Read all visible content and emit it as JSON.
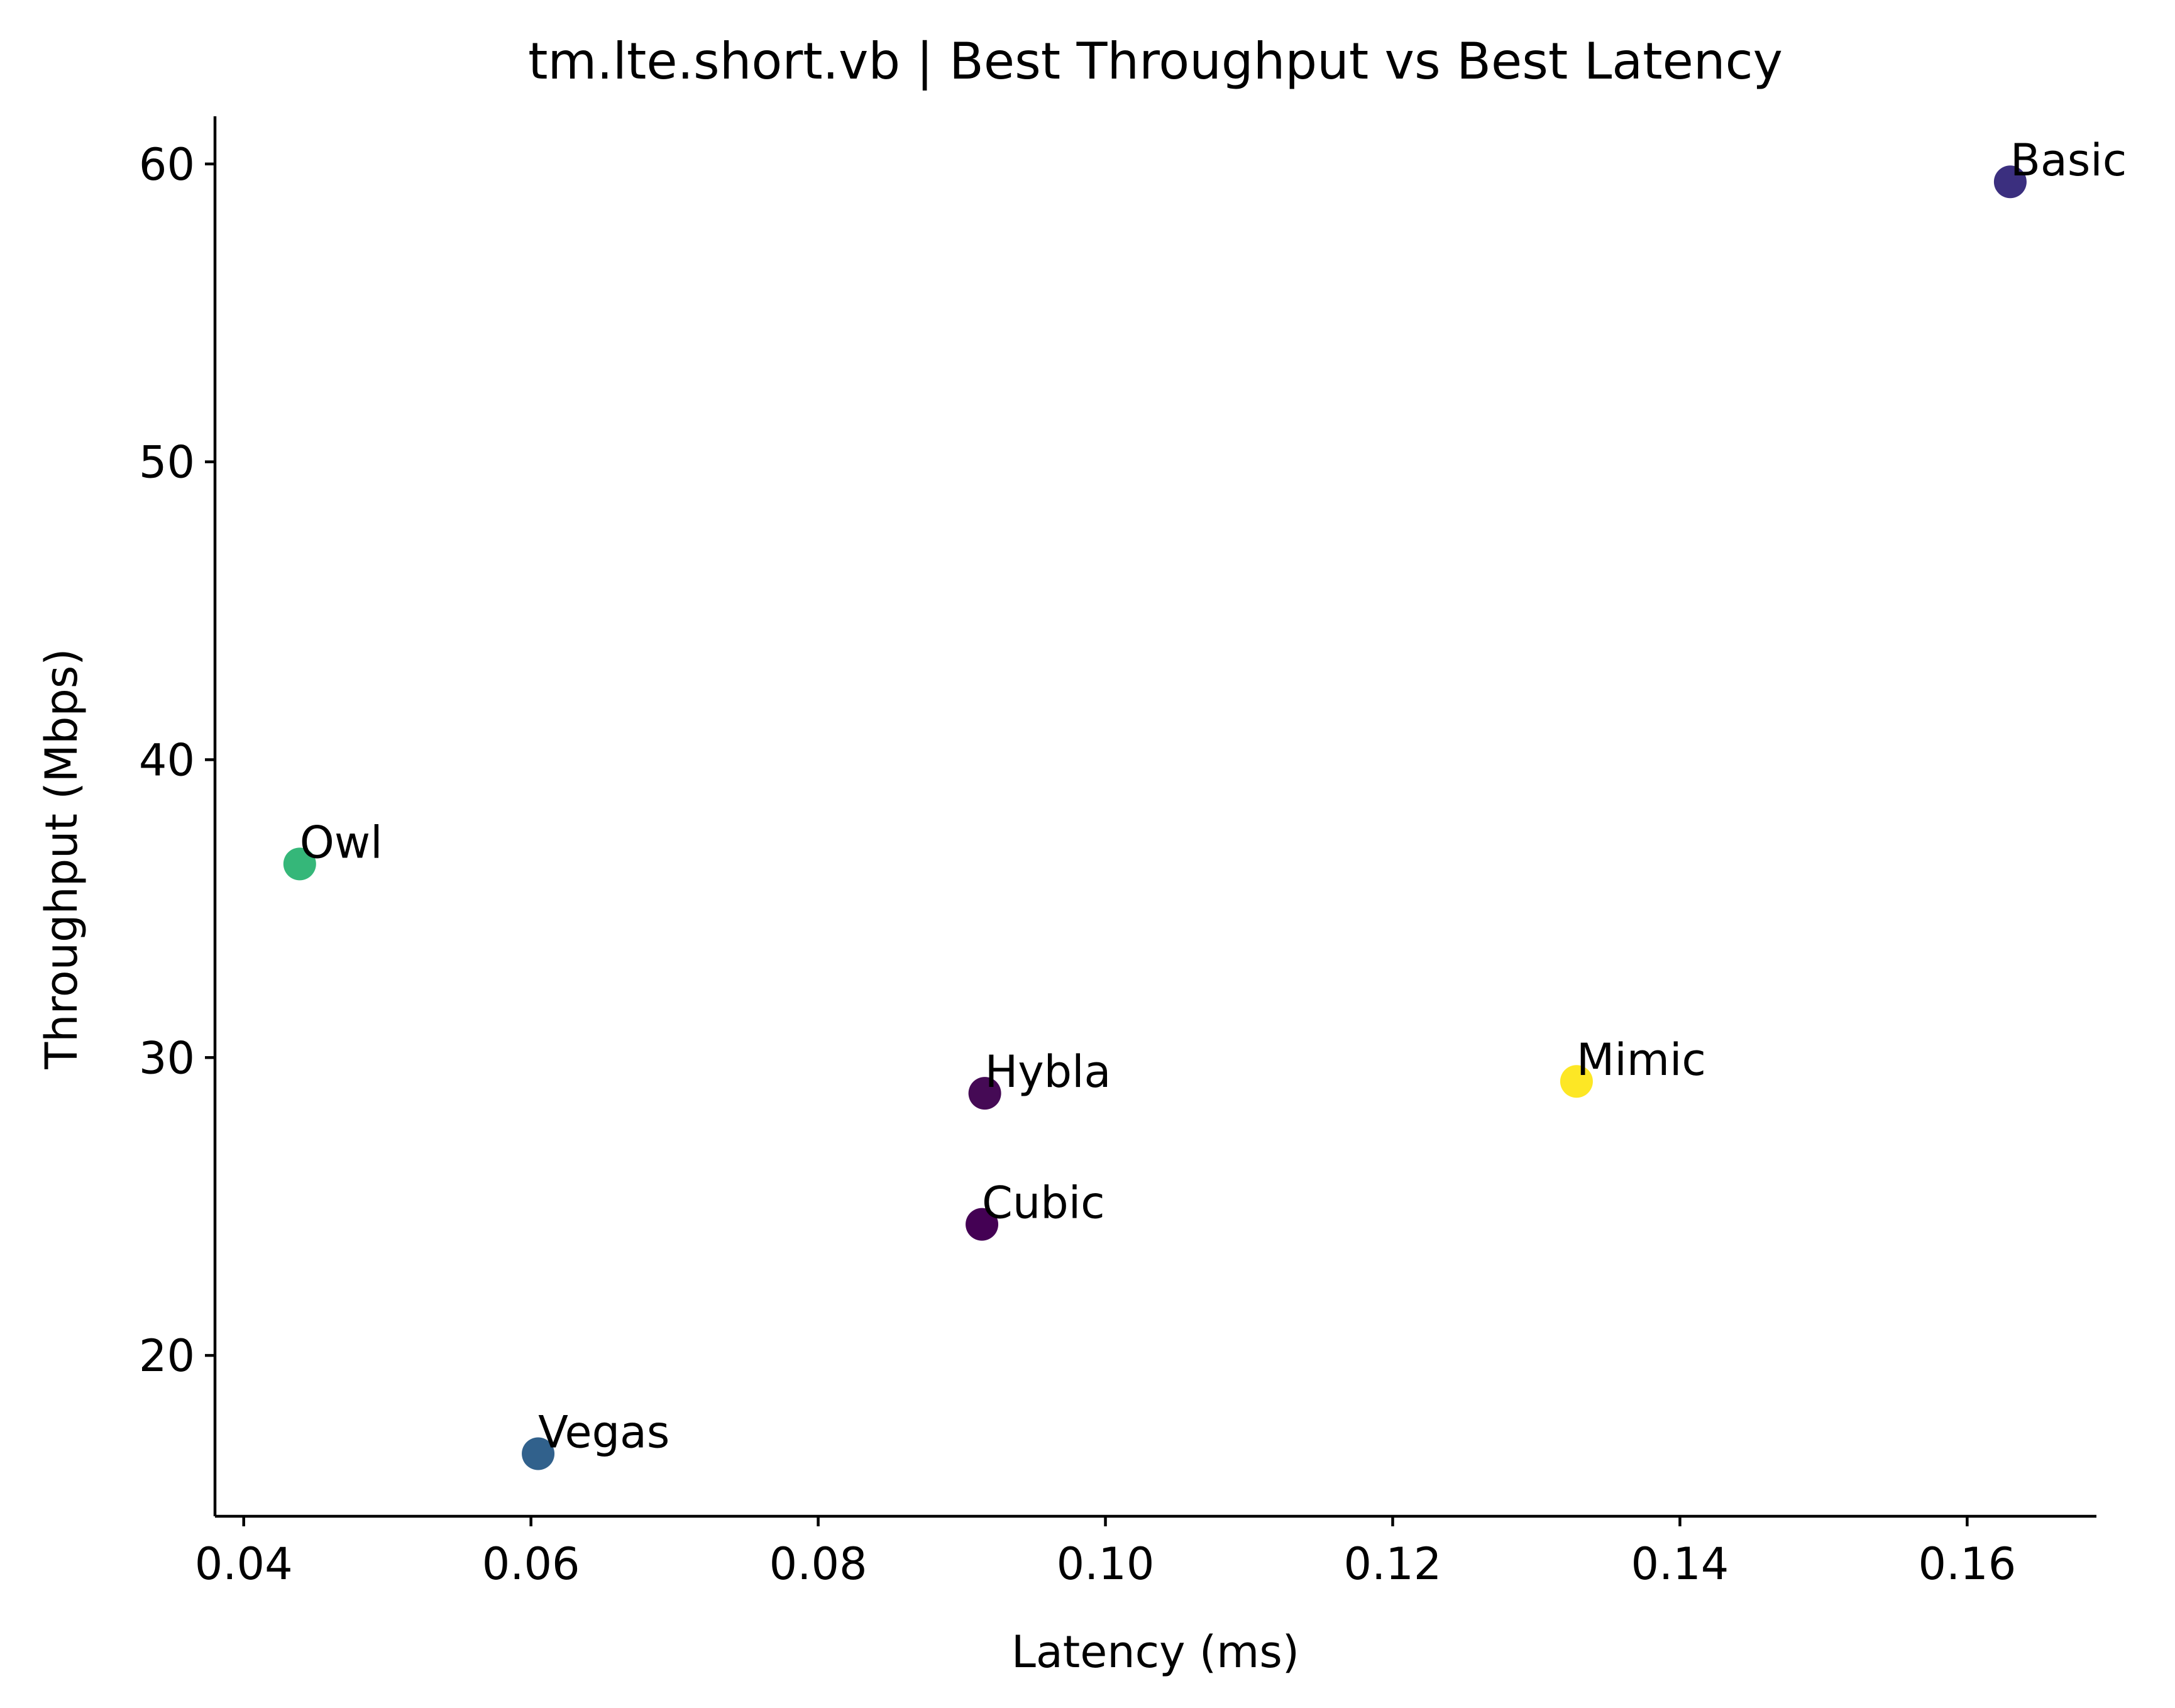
{
  "chart_data": {
    "type": "scatter",
    "title": "tm.lte.short.vb | Best Throughput vs Best Latency",
    "xlabel": "Latency (ms)",
    "ylabel": "Throughput (Mbps)",
    "xlim": [
      0.038,
      0.169
    ],
    "ylim": [
      14.6,
      61.6
    ],
    "xticks": [
      0.04,
      0.06,
      0.08,
      0.1,
      0.12,
      0.14,
      0.16
    ],
    "xtick_labels": [
      "0.04",
      "0.06",
      "0.08",
      "0.10",
      "0.12",
      "0.14",
      "0.16"
    ],
    "yticks": [
      20,
      30,
      40,
      50,
      60
    ],
    "ytick_labels": [
      "20",
      "30",
      "40",
      "50",
      "60"
    ],
    "grid": false,
    "points": [
      {
        "label": "Basic",
        "x": 0.163,
        "y": 59.4,
        "color": "#3b2f7f"
      },
      {
        "label": "Owl",
        "x": 0.0439,
        "y": 36.5,
        "color": "#35b779"
      },
      {
        "label": "Hybla",
        "x": 0.0916,
        "y": 28.8,
        "color": "#450a55"
      },
      {
        "label": "Mimic",
        "x": 0.1328,
        "y": 29.2,
        "color": "#fde725"
      },
      {
        "label": "Cubic",
        "x": 0.0914,
        "y": 24.4,
        "color": "#440154"
      },
      {
        "label": "Vegas",
        "x": 0.0605,
        "y": 16.7,
        "color": "#31618c"
      }
    ]
  }
}
